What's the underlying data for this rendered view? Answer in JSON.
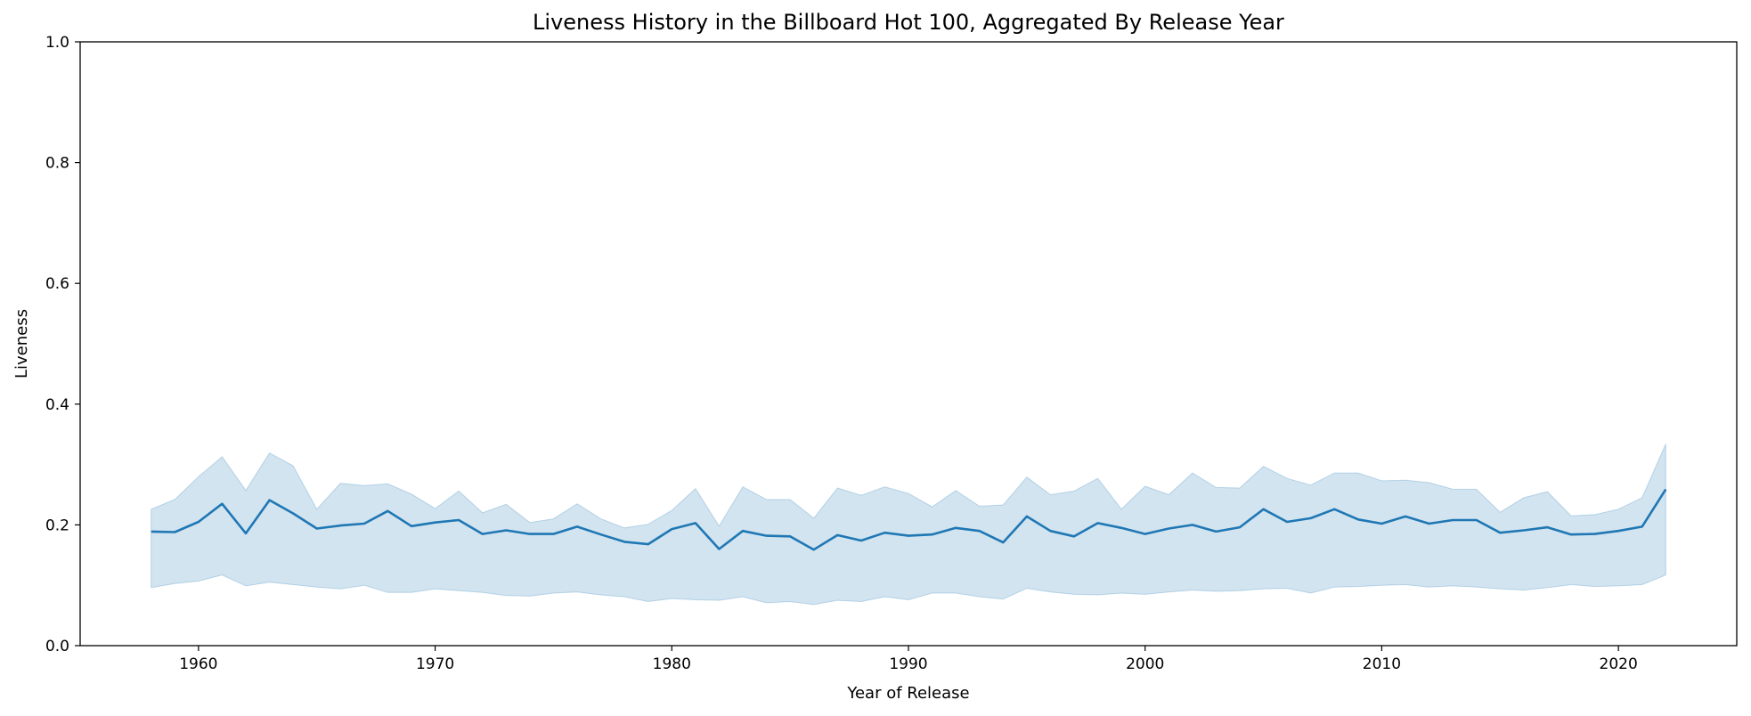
{
  "chart_data": {
    "type": "line",
    "title": "Liveness History in the Billboard Hot 100, Aggregated By Release Year",
    "xlabel": "Year of Release",
    "ylabel": "Liveness",
    "xlim": [
      1955,
      2025
    ],
    "ylim": [
      0.0,
      1.0
    ],
    "x_ticks": [
      1960,
      1970,
      1980,
      1990,
      2000,
      2010,
      2020
    ],
    "y_ticks": [
      0.0,
      0.2,
      0.4,
      0.6,
      0.8,
      1.0
    ],
    "y_tick_labels": [
      "0.0",
      "0.2",
      "0.4",
      "0.6",
      "0.8",
      "1.0"
    ],
    "grid": false,
    "colors": {
      "line": "#1f77b4",
      "band": "#1f77b4"
    },
    "series": [
      {
        "x": [
          1958,
          1959,
          1960,
          1961,
          1962,
          1963,
          1964,
          1965,
          1966,
          1967,
          1968,
          1969,
          1970,
          1971,
          1972,
          1973,
          1974,
          1975,
          1976,
          1977,
          1978,
          1979,
          1980,
          1981,
          1982,
          1983,
          1984,
          1985,
          1986,
          1987,
          1988,
          1989,
          1990,
          1991,
          1992,
          1993,
          1994,
          1995,
          1996,
          1997,
          1998,
          1999,
          2000,
          2001,
          2002,
          2003,
          2004,
          2005,
          2006,
          2007,
          2008,
          2009,
          2010,
          2011,
          2012,
          2013,
          2014,
          2015,
          2016,
          2017,
          2018,
          2019,
          2020,
          2021,
          2022
        ],
        "y": [
          0.189,
          0.188,
          0.205,
          0.235,
          0.186,
          0.241,
          0.219,
          0.194,
          0.199,
          0.202,
          0.223,
          0.198,
          0.204,
          0.208,
          0.185,
          0.191,
          0.185,
          0.185,
          0.197,
          0.184,
          0.172,
          0.168,
          0.193,
          0.203,
          0.16,
          0.19,
          0.182,
          0.181,
          0.159,
          0.183,
          0.174,
          0.187,
          0.182,
          0.184,
          0.195,
          0.19,
          0.171,
          0.214,
          0.19,
          0.181,
          0.203,
          0.195,
          0.185,
          0.194,
          0.2,
          0.189,
          0.196,
          0.226,
          0.205,
          0.211,
          0.226,
          0.209,
          0.202,
          0.214,
          0.202,
          0.208,
          0.208,
          0.187,
          0.191,
          0.196,
          0.184,
          0.185,
          0.19,
          0.197,
          0.259
        ],
        "lower": [
          0.096,
          0.103,
          0.107,
          0.117,
          0.099,
          0.105,
          0.101,
          0.097,
          0.094,
          0.1,
          0.088,
          0.088,
          0.094,
          0.091,
          0.088,
          0.083,
          0.082,
          0.087,
          0.089,
          0.084,
          0.081,
          0.073,
          0.078,
          0.076,
          0.075,
          0.081,
          0.071,
          0.073,
          0.068,
          0.075,
          0.073,
          0.081,
          0.076,
          0.087,
          0.087,
          0.081,
          0.077,
          0.095,
          0.089,
          0.085,
          0.084,
          0.087,
          0.085,
          0.089,
          0.092,
          0.09,
          0.091,
          0.094,
          0.095,
          0.087,
          0.097,
          0.098,
          0.1,
          0.101,
          0.097,
          0.099,
          0.097,
          0.094,
          0.092,
          0.096,
          0.101,
          0.098,
          0.099,
          0.101,
          0.117
        ],
        "upper": [
          0.226,
          0.242,
          0.28,
          0.313,
          0.257,
          0.319,
          0.298,
          0.226,
          0.269,
          0.265,
          0.268,
          0.251,
          0.227,
          0.256,
          0.22,
          0.234,
          0.204,
          0.21,
          0.235,
          0.21,
          0.195,
          0.201,
          0.224,
          0.26,
          0.198,
          0.263,
          0.242,
          0.242,
          0.211,
          0.261,
          0.249,
          0.263,
          0.252,
          0.23,
          0.257,
          0.231,
          0.233,
          0.279,
          0.25,
          0.256,
          0.277,
          0.226,
          0.264,
          0.25,
          0.286,
          0.262,
          0.261,
          0.297,
          0.277,
          0.266,
          0.286,
          0.286,
          0.273,
          0.274,
          0.27,
          0.259,
          0.259,
          0.221,
          0.245,
          0.255,
          0.215,
          0.217,
          0.226,
          0.245,
          0.334
        ]
      }
    ]
  }
}
